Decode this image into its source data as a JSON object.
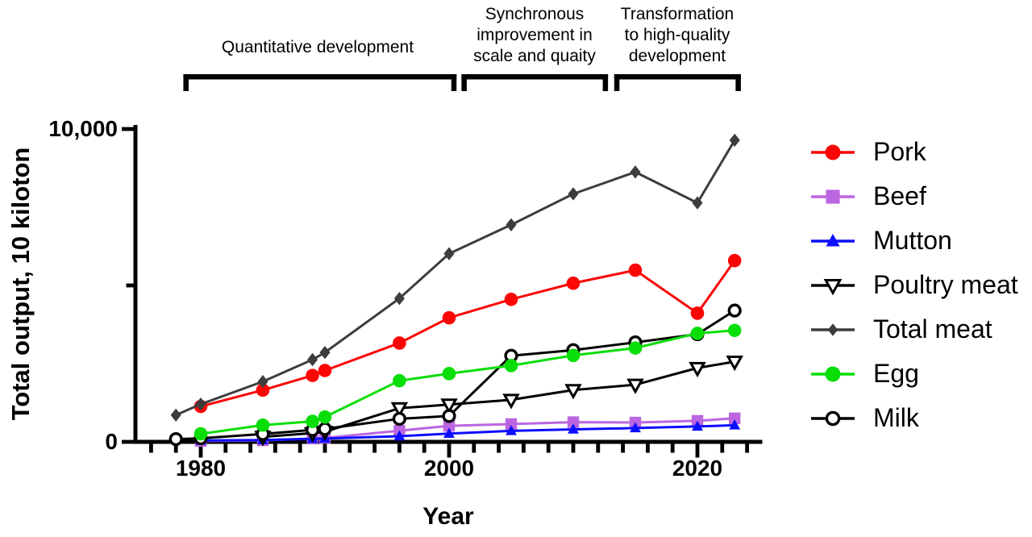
{
  "figure": {
    "background": "#ffffff",
    "text_color": "#000000"
  },
  "chart_data": {
    "type": "line",
    "title": "",
    "xlabel": "Year",
    "ylabel": "Total output, 10 kiloton",
    "legend_position": "right",
    "grid": false,
    "x": [
      1978,
      1980,
      1985,
      1989,
      1990,
      1996,
      2000,
      2005,
      2010,
      2015,
      2020,
      2023
    ],
    "x_axis": {
      "tick_start": 1976,
      "tick_end": 2024,
      "minor_step": 2,
      "major_ticks": [
        {
          "year": 1980,
          "label": "1980"
        },
        {
          "year": 2000,
          "label": "2000"
        },
        {
          "year": 2020,
          "label": "2020"
        }
      ]
    },
    "y_axis": {
      "min": 0,
      "max": 10000,
      "major_ticks": [
        {
          "value": 10000,
          "label": "10,000"
        },
        {
          "value": 0,
          "label": "0"
        }
      ],
      "minor_ticks": [
        5000
      ]
    },
    "series": [
      {
        "name": "Pork",
        "color": "#FB0505",
        "marker": "circle",
        "values": [
          null,
          1134,
          1655,
          2123,
          2281,
          3158,
          3966,
          4555,
          5071,
          5487,
          4113,
          5794
        ]
      },
      {
        "name": "Beef",
        "color": "#BB66E0",
        "marker": "square",
        "values": [
          null,
          27,
          47,
          107,
          126,
          356,
          513,
          568,
          629,
          617,
          672,
          753
        ]
      },
      {
        "name": "Mutton",
        "color": "#0D0DFF",
        "marker": "triangle-up",
        "values": [
          null,
          44,
          59,
          96,
          107,
          181,
          264,
          350,
          399,
          441,
          492,
          531
        ]
      },
      {
        "name": "Poultry meat",
        "color": "#000000",
        "marker": "triangle-down-open",
        "values": [
          null,
          null,
          160,
          278,
          323,
          1075,
          1191,
          1344,
          1656,
          1826,
          2361,
          2563
        ]
      },
      {
        "name": "Total meat",
        "color": "#3D3D3D",
        "marker": "diamond",
        "values": [
          856,
          1205,
          1927,
          2629,
          2857,
          4584,
          6014,
          6939,
          7926,
          8625,
          7639,
          9641
        ]
      },
      {
        "name": "Egg",
        "color": "#09DE09",
        "marker": "circle",
        "values": [
          null,
          257,
          535,
          655,
          795,
          1954,
          2182,
          2438,
          2763,
          2999,
          3468,
          3563
        ]
      },
      {
        "name": "Milk",
        "color": "#000000",
        "marker": "circle-open",
        "values": [
          88,
          114,
          250,
          381,
          415,
          736,
          827,
          2753,
          2932,
          3180,
          3440,
          4197
        ]
      }
    ],
    "annotations": [
      {
        "lines": [
          "Quantitative development"
        ],
        "span_years": [
          1978.6,
          2000.6
        ]
      },
      {
        "lines": [
          "Synchronous",
          "improvement in",
          "scale and quaity"
        ],
        "span_years": [
          2001.0,
          2012.8
        ]
      },
      {
        "lines": [
          "Transformation",
          "to high-quality",
          "development"
        ],
        "span_years": [
          2013.3,
          2023.5
        ]
      }
    ]
  }
}
